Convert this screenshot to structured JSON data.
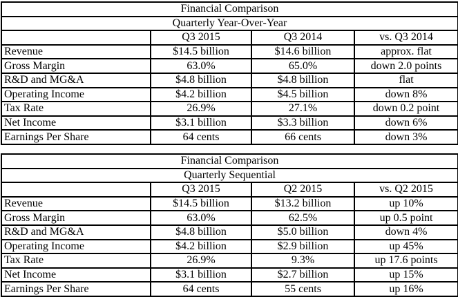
{
  "page": {
    "background_color": "#ffffff",
    "border_color": "#000000",
    "text_color": "#000000"
  },
  "tables": [
    {
      "title": "Financial Comparison",
      "subtitle": "Quarterly Year-Over-Year",
      "columns": [
        "",
        "Q3 2015",
        "Q3 2014",
        "vs. Q3 2014"
      ],
      "rows": [
        {
          "label": "Revenue",
          "values": [
            "$14.5 billion",
            "$14.6 billion",
            "approx. flat"
          ]
        },
        {
          "label": "Gross Margin",
          "values": [
            "63.0%",
            "65.0%",
            "down 2.0 points"
          ]
        },
        {
          "label": "R&D and MG&A",
          "values": [
            "$4.8 billion",
            "$4.8 billion",
            "flat"
          ]
        },
        {
          "label": "Operating Income",
          "values": [
            "$4.2 billion",
            "$4.5 billion",
            "down 8%"
          ]
        },
        {
          "label": "Tax Rate",
          "values": [
            "26.9%",
            "27.1%",
            "down 0.2 point"
          ]
        },
        {
          "label": "Net Income",
          "values": [
            "$3.1 billion",
            "$3.3 billion",
            "down 6%"
          ]
        },
        {
          "label": "Earnings Per Share",
          "values": [
            "64 cents",
            "66 cents",
            "down 3%"
          ]
        }
      ]
    },
    {
      "title": "Financial Comparison",
      "subtitle": "Quarterly Sequential",
      "columns": [
        "",
        "Q3 2015",
        "Q2 2015",
        "vs. Q2 2015"
      ],
      "rows": [
        {
          "label": "Revenue",
          "values": [
            "$14.5 billion",
            "$13.2 billion",
            "up 10%"
          ]
        },
        {
          "label": "Gross Margin",
          "values": [
            "63.0%",
            "62.5%",
            "up 0.5 point"
          ]
        },
        {
          "label": "R&D and MG&A",
          "values": [
            "$4.8 billion",
            "$5.0 billion",
            "down 4%"
          ]
        },
        {
          "label": "Operating Income",
          "values": [
            "$4.2 billion",
            "$2.9 billion",
            "up 45%"
          ]
        },
        {
          "label": "Tax Rate",
          "values": [
            "26.9%",
            "9.3%",
            "up 17.6 points"
          ]
        },
        {
          "label": "Net Income",
          "values": [
            "$3.1 billion",
            "$2.7 billion",
            "up 15%"
          ]
        },
        {
          "label": "Earnings Per Share",
          "values": [
            "64 cents",
            "55 cents",
            "up 16%"
          ]
        }
      ]
    }
  ]
}
